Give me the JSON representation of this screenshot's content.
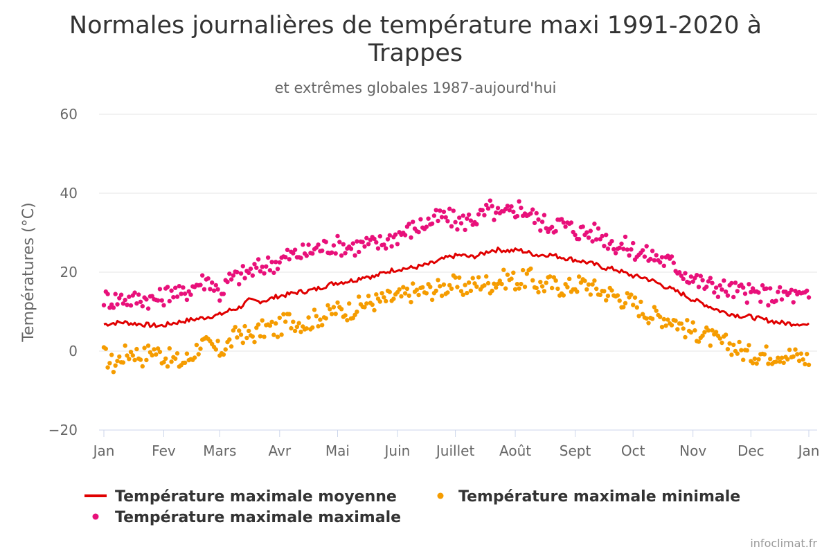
{
  "chart_data": {
    "type": "line",
    "title": "Normales journalières de température maxi 1991-2020 à Trappes",
    "title_lines": [
      "Normales journalières de température maxi 1991-2020 à",
      "Trappes"
    ],
    "subtitle": "et extrêmes globales 1987-aujourd'hui",
    "xlabel": "",
    "ylabel": "Températures (°C)",
    "ylim": [
      -20,
      60
    ],
    "yticks": [
      -20,
      0,
      20,
      40,
      60
    ],
    "ytick_labels": [
      "−20",
      "0",
      "20",
      "40",
      "60"
    ],
    "x_unit": "day_of_year",
    "xlim": [
      1,
      366
    ],
    "month_ticks": [
      {
        "label": "Jan",
        "day": 1
      },
      {
        "label": "Fev",
        "day": 32
      },
      {
        "label": "Mars",
        "day": 61
      },
      {
        "label": "Avr",
        "day": 92
      },
      {
        "label": "Mai",
        "day": 122
      },
      {
        "label": "Juin",
        "day": 153
      },
      {
        "label": "Juillet",
        "day": 183
      },
      {
        "label": "Août",
        "day": 214
      },
      {
        "label": "Sept",
        "day": 245
      },
      {
        "label": "Oct",
        "day": 275
      },
      {
        "label": "Nov",
        "day": 306
      },
      {
        "label": "Dec",
        "day": 336
      },
      {
        "label": "Jan",
        "day": 366
      }
    ],
    "grid": true,
    "legend": "bottom",
    "series": [
      {
        "name": "Température maximale moyenne",
        "type": "line",
        "color": "#e00000",
        "x": [
          1,
          6,
          11,
          16,
          21,
          26,
          31,
          36,
          41,
          46,
          51,
          56,
          61,
          66,
          71,
          76,
          81,
          86,
          91,
          96,
          101,
          106,
          111,
          116,
          121,
          126,
          131,
          136,
          141,
          146,
          151,
          156,
          161,
          166,
          171,
          176,
          181,
          186,
          191,
          196,
          201,
          206,
          211,
          216,
          221,
          226,
          231,
          236,
          241,
          246,
          251,
          256,
          261,
          266,
          271,
          276,
          281,
          286,
          291,
          296,
          301,
          306,
          311,
          316,
          321,
          326,
          331,
          336,
          341,
          346,
          351,
          356,
          361,
          366
        ],
        "values": [
          6.8,
          7.1,
          7.3,
          7.0,
          6.8,
          6.5,
          6.4,
          7.0,
          7.5,
          7.9,
          8.3,
          8.8,
          9.2,
          10.3,
          11.0,
          12.8,
          12.6,
          13.0,
          13.9,
          14.3,
          14.9,
          15.2,
          15.7,
          16.6,
          17.3,
          17.6,
          18.0,
          19.0,
          18.8,
          19.9,
          20.6,
          20.9,
          21.1,
          21.6,
          22.2,
          23.2,
          24.0,
          24.3,
          23.8,
          24.4,
          25.5,
          25.7,
          25.4,
          25.6,
          24.9,
          24.3,
          24.5,
          24.0,
          23.5,
          23.0,
          22.5,
          21.8,
          21.0,
          20.7,
          19.7,
          18.9,
          18.6,
          17.6,
          16.5,
          15.4,
          14.4,
          13.0,
          12.1,
          11.0,
          10.0,
          9.4,
          8.9,
          8.7,
          8.1,
          7.7,
          7.2,
          7.0,
          7.0,
          6.5
        ]
      },
      {
        "name": "Température maximale minimale",
        "type": "scatter",
        "color": "#f59c00",
        "x": [
          1,
          6,
          11,
          16,
          21,
          26,
          31,
          36,
          41,
          46,
          51,
          56,
          61,
          66,
          71,
          76,
          81,
          86,
          91,
          96,
          101,
          106,
          111,
          116,
          121,
          126,
          131,
          136,
          141,
          146,
          151,
          156,
          161,
          166,
          171,
          176,
          181,
          186,
          191,
          196,
          201,
          206,
          211,
          216,
          221,
          226,
          231,
          236,
          241,
          246,
          251,
          256,
          261,
          266,
          271,
          276,
          281,
          286,
          291,
          296,
          301,
          306,
          311,
          316,
          321,
          326,
          331,
          336,
          341,
          346,
          351,
          356,
          361,
          366
        ],
        "values": [
          -1.0,
          -3.5,
          -1.0,
          0.0,
          -1.5,
          0.5,
          -1.0,
          -2.0,
          -3.0,
          -1.5,
          2.0,
          1.0,
          0.0,
          2.0,
          5.0,
          3.5,
          5.0,
          6.0,
          5.5,
          8.0,
          7.5,
          7.0,
          8.5,
          9.0,
          10.5,
          10.0,
          11.0,
          12.0,
          12.5,
          13.0,
          13.5,
          14.0,
          15.0,
          15.0,
          15.5,
          16.0,
          17.0,
          16.0,
          16.5,
          17.5,
          17.0,
          18.0,
          18.5,
          17.5,
          19.0,
          16.5,
          17.0,
          16.5,
          16.0,
          17.0,
          17.0,
          15.5,
          15.0,
          14.0,
          13.0,
          12.0,
          10.0,
          9.0,
          8.5,
          8.0,
          6.0,
          5.0,
          4.5,
          3.0,
          2.0,
          1.5,
          0.0,
          -1.0,
          -0.5,
          -1.0,
          -0.5,
          -1.0,
          -1.5,
          -2.0
        ]
      },
      {
        "name": "Température maximale maximale",
        "type": "scatter",
        "color": "#e8107a",
        "x": [
          1,
          6,
          11,
          16,
          21,
          26,
          31,
          36,
          41,
          46,
          51,
          56,
          61,
          66,
          71,
          76,
          81,
          86,
          91,
          96,
          101,
          106,
          111,
          116,
          121,
          126,
          131,
          136,
          141,
          146,
          151,
          156,
          161,
          166,
          171,
          176,
          181,
          186,
          191,
          196,
          201,
          206,
          211,
          216,
          221,
          226,
          231,
          236,
          241,
          246,
          251,
          256,
          261,
          266,
          271,
          276,
          281,
          286,
          291,
          296,
          301,
          306,
          311,
          316,
          321,
          326,
          331,
          336,
          341,
          346,
          351,
          356,
          361,
          366
        ],
        "values": [
          13.5,
          13.0,
          13.5,
          13.0,
          13.5,
          13.0,
          13.5,
          15.5,
          14.0,
          16.0,
          17.5,
          18.0,
          14.5,
          18.0,
          19.0,
          20.0,
          21.0,
          22.0,
          22.5,
          24.0,
          24.5,
          25.0,
          26.0,
          26.5,
          27.0,
          26.5,
          26.5,
          27.0,
          27.0,
          27.5,
          29.0,
          30.0,
          31.0,
          32.0,
          33.0,
          34.0,
          33.5,
          32.5,
          33.5,
          34.0,
          36.0,
          34.0,
          35.0,
          36.5,
          35.0,
          33.0,
          32.0,
          32.5,
          31.5,
          30.5,
          30.0,
          30.0,
          28.5,
          27.0,
          26.5,
          25.5,
          24.5,
          24.0,
          23.0,
          22.0,
          20.0,
          18.5,
          17.0,
          16.5,
          16.0,
          15.5,
          15.0,
          14.5,
          14.5,
          14.0,
          14.0,
          14.5,
          13.5,
          13.5
        ]
      }
    ]
  },
  "credit": "infoclimat.fr"
}
